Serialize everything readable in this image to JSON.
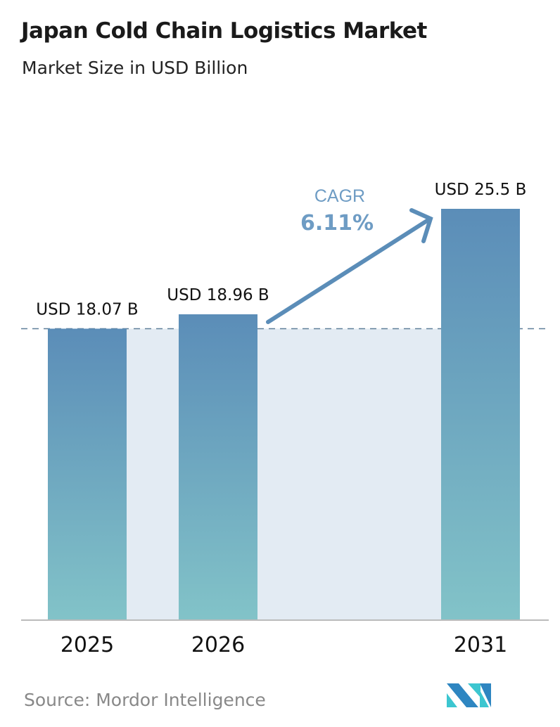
{
  "chart_data": {
    "type": "bar",
    "title": "Japan Cold Chain Logistics Market",
    "subtitle": "Market Size in USD Billion",
    "categories": [
      "2025",
      "2026",
      "2031"
    ],
    "values": [
      18.07,
      18.96,
      25.5
    ],
    "data_labels": [
      "USD 18.07 B",
      "USD 18.96 B",
      "USD 25.5 B"
    ],
    "ylim": [
      0,
      25.5
    ],
    "grid": false,
    "annotation": {
      "label": "CAGR",
      "value": "6.11%"
    },
    "colors": {
      "bar_top": "#5b8db8",
      "bar_bottom": "#82c3c8",
      "band": "#e3ebf3",
      "arrow": "#5b8db8",
      "dash": "#5f7f99"
    }
  },
  "source": "Source:  Mordor Intelligence"
}
